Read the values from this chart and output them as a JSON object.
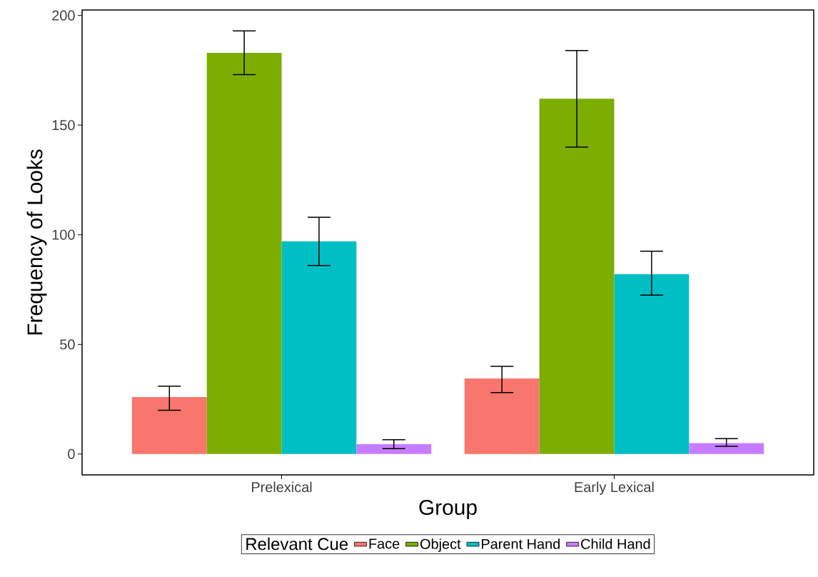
{
  "chart_data": {
    "type": "bar",
    "xlabel": "Group",
    "ylabel": "Frequency of Looks",
    "legend_title": "Relevant Cue",
    "categories": [
      "Prelexical",
      "Early Lexical"
    ],
    "series": [
      {
        "name": "Face",
        "color": "#f8766d",
        "values": [
          26,
          34.5
        ],
        "errors": [
          [
            20,
            31
          ],
          [
            28,
            40
          ]
        ]
      },
      {
        "name": "Object",
        "color": "#7cae00",
        "values": [
          183,
          162
        ],
        "errors": [
          [
            173,
            193
          ],
          [
            140,
            184
          ]
        ]
      },
      {
        "name": "Parent Hand",
        "color": "#00bfc4",
        "values": [
          97,
          82
        ],
        "errors": [
          [
            86,
            108
          ],
          [
            72.5,
            92.5
          ]
        ]
      },
      {
        "name": "Child Hand",
        "color": "#c77cff",
        "values": [
          4.5,
          5
        ],
        "errors": [
          [
            2.5,
            6.5
          ],
          [
            3.5,
            7
          ]
        ]
      }
    ],
    "ylim": [
      -9.5,
      202.5
    ],
    "yticks": [
      0,
      50,
      100,
      150,
      200
    ],
    "legend": "bottom",
    "grid": false
  }
}
